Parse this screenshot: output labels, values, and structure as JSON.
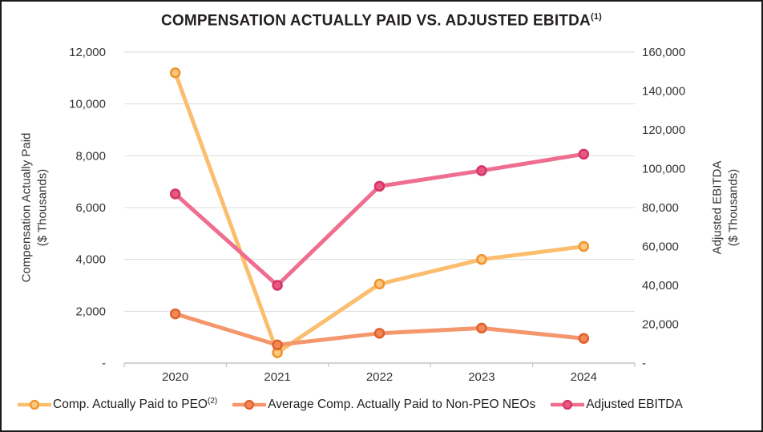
{
  "frame": {
    "background": "#FFFFFF",
    "border_color": "#1A1A1A"
  },
  "chart_data": {
    "type": "line",
    "title": "COMPENSATION ACTUALLY PAID VS. ADJUSTED EBITDA",
    "title_superscript": "(1)",
    "categories": [
      "2020",
      "2021",
      "2022",
      "2023",
      "2024"
    ],
    "series": [
      {
        "name": "Comp. Actually Paid to PEO",
        "name_superscript": "(2)",
        "axis": "left",
        "values": [
          11200,
          400,
          3050,
          4000,
          4500
        ],
        "line_color": "#FBBE6F",
        "marker_fill": "#FBC87F",
        "marker_stroke": "#F0932C"
      },
      {
        "name": "Average Comp. Actually Paid to Non-PEO NEOs",
        "name_superscript": "",
        "axis": "left",
        "values": [
          1900,
          700,
          1150,
          1350,
          950
        ],
        "line_color": "#F4976C",
        "marker_fill": "#F08A55",
        "marker_stroke": "#E2602E"
      },
      {
        "name": "Adjusted EBITDA",
        "name_superscript": "",
        "axis": "right",
        "values": [
          87000,
          40000,
          91000,
          99000,
          107500
        ],
        "line_color": "#EF6E8F",
        "marker_fill": "#E7597E",
        "marker_stroke": "#D63468"
      }
    ],
    "left_axis": {
      "label": "Compensation Actually Paid\n($ Thousands)",
      "max": 12000,
      "tick_labels": [
        "12,000",
        "10,000",
        "8,000",
        "6,000",
        "4,000",
        "2,000",
        "-"
      ]
    },
    "right_axis": {
      "label": "Adjusted EBITDA\n($ Thousands)",
      "max": 160000,
      "tick_labels": [
        "160,000",
        "140,000",
        "120,000",
        "100,000",
        "80,000",
        "60,000",
        "40,000",
        "20,000",
        "-"
      ]
    },
    "grid": true,
    "legend_position": "bottom",
    "grid_color": "#DCDCDC",
    "axis_line_color": "#C4C4C4",
    "text_color": "#333333"
  }
}
